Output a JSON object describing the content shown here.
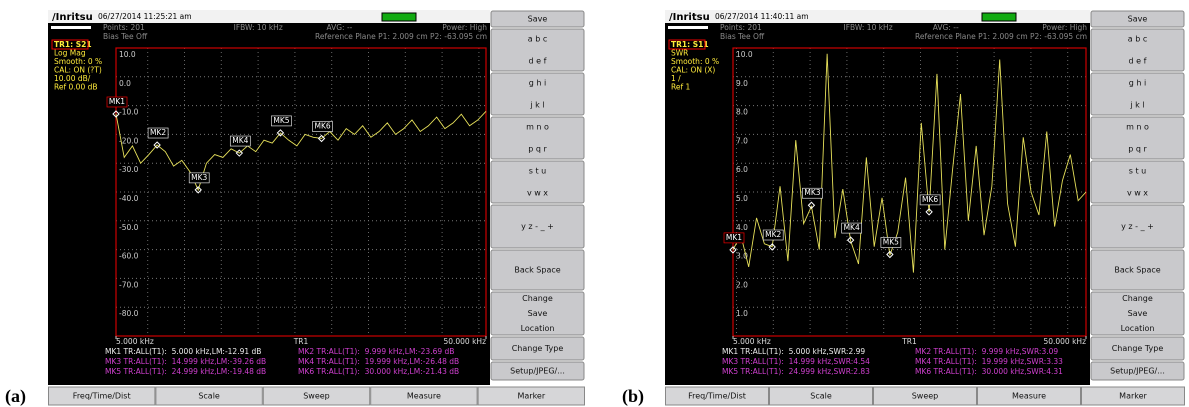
{
  "panels": [
    {
      "caption": "(a)",
      "logo": "/Inritsu",
      "datetime": "06/27/2014 11:25:21 am",
      "points": "Points: 201",
      "bias_tee": "Bias Tee Off",
      "ifbw": "IFBW: 10 kHz",
      "avg": "AVG: --",
      "power": "Power: High",
      "ref_plane": "Reference Plane P1: 2.009 cm P2: -63.095 cm",
      "trace_info": [
        "TR1: S21",
        "Log Mag",
        "Smooth: 0 %",
        "CAL: ON (?T)",
        "10.00 dB/",
        "Ref 0.00 dB"
      ],
      "ylim": [
        -90,
        10
      ],
      "yticks": [
        {
          "value": 10,
          "label": "10.0"
        },
        {
          "value": 0,
          "label": "0.0"
        },
        {
          "value": -10,
          "label": "-10.0"
        },
        {
          "value": -20,
          "label": "-20.0"
        },
        {
          "value": -30,
          "label": "-30.0"
        },
        {
          "value": -40,
          "label": "-40.0"
        },
        {
          "value": -50,
          "label": "-50.0"
        },
        {
          "value": -60,
          "label": "-60.0"
        },
        {
          "value": -70,
          "label": "-70.0"
        },
        {
          "value": -80,
          "label": "-80.0"
        }
      ],
      "xlim": [
        5,
        50
      ],
      "xticks": [
        {
          "value": 5,
          "label": "5.000 kHz"
        },
        {
          "value": 50,
          "label": "50.000 kHz"
        }
      ],
      "trace_name": "TR1",
      "trace": {
        "x": [
          5,
          6,
          7,
          8,
          9,
          10,
          11,
          12,
          13,
          14,
          15,
          16,
          17,
          18,
          19,
          20,
          21,
          22,
          23,
          24,
          25,
          26,
          27,
          28,
          29,
          30,
          31,
          32,
          33,
          34,
          35,
          36,
          37,
          38,
          39,
          40,
          41,
          42,
          43,
          44,
          45,
          46,
          47,
          48,
          49,
          50
        ],
        "values": [
          -12.9,
          -28,
          -24,
          -30,
          -27,
          -23.7,
          -26,
          -31,
          -29,
          -33,
          -39.3,
          -30,
          -27,
          -28,
          -25,
          -26.5,
          -24,
          -26,
          -22,
          -23,
          -19.5,
          -22,
          -24,
          -20,
          -21,
          -21.4,
          -19,
          -22,
          -18,
          -20,
          -17,
          -21,
          -19,
          -16,
          -20,
          -18,
          -15,
          -19,
          -17,
          -14,
          -18,
          -16,
          -13,
          -17,
          -15,
          -12
        ]
      },
      "markers": [
        {
          "label": "MK1",
          "x": 5,
          "value": -12.91
        },
        {
          "label": "MK2",
          "x": 9.999,
          "value": -23.69
        },
        {
          "label": "MK3",
          "x": 14.999,
          "value": -39.26
        },
        {
          "label": "MK4",
          "x": 19.999,
          "value": -26.48
        },
        {
          "label": "MK5",
          "x": 24.999,
          "value": -19.48
        },
        {
          "label": "MK6",
          "x": 30,
          "value": -21.43
        }
      ],
      "readouts": [
        "MK1 TR:ALL(T1):  5.000 kHz,LM:-12.91 dB",
        "MK2 TR:ALL(T1):  9.999 kHz,LM:-23.69 dB",
        "MK3 TR:ALL(T1):  14.999 kHz,LM:-39.26 dB",
        "MK4 TR:ALL(T1):  19.999 kHz,LM:-26.48 dB",
        "MK5 TR:ALL(T1):  24.999 kHz,LM:-19.48 dB",
        "MK6 TR:ALL(T1):  30.000 kHz,LM:-21.43 dB"
      ],
      "softkeys": [
        "Save",
        "a b c",
        "d e f",
        "g h i",
        "j k l",
        "m n o",
        "p q r",
        "s t u",
        "v w x",
        "y z - _ +",
        "Back Space",
        "Change",
        "Save",
        "Location",
        "Change Type",
        "Setup/JPEG/..."
      ],
      "tabs": [
        "Freq/Time/Dist",
        "Scale",
        "Sweep",
        "Measure",
        "Marker"
      ]
    },
    {
      "caption": "(b)",
      "logo": "/Inritsu",
      "datetime": "06/27/2014 11:40:11 am",
      "points": "Points: 201",
      "bias_tee": "Bias Tee Off",
      "ifbw": "IFBW: 10 kHz",
      "avg": "AVG: --",
      "power": "Power: High",
      "ref_plane": "Reference Plane P1: 2.009 cm P2: -63.095 cm",
      "trace_info": [
        "TR1: S11",
        "SWR",
        "Smooth: 0 %",
        "CAL: ON (X)",
        "1 /",
        "Ref 1"
      ],
      "ylim": [
        0,
        10
      ],
      "yticks": [
        {
          "value": 10,
          "label": "10.0"
        },
        {
          "value": 9,
          "label": "9.0"
        },
        {
          "value": 8,
          "label": "8.0"
        },
        {
          "value": 7,
          "label": "7.0"
        },
        {
          "value": 6,
          "label": "6.0"
        },
        {
          "value": 5,
          "label": "5.0"
        },
        {
          "value": 4,
          "label": "4.0"
        },
        {
          "value": 3,
          "label": "3.0"
        },
        {
          "value": 2,
          "label": "2.0"
        },
        {
          "value": 1,
          "label": "1.0"
        }
      ],
      "xlim": [
        5,
        50
      ],
      "xticks": [
        {
          "value": 5,
          "label": "5.000 kHz"
        },
        {
          "value": 50,
          "label": "50.000 kHz"
        }
      ],
      "trace_name": "TR1",
      "trace": {
        "x": [
          5,
          6,
          7,
          8,
          9,
          10,
          11,
          12,
          13,
          14,
          15,
          16,
          17,
          18,
          19,
          20,
          21,
          22,
          23,
          24,
          25,
          26,
          27,
          28,
          29,
          30,
          31,
          32,
          33,
          34,
          35,
          36,
          37,
          38,
          39,
          40,
          41,
          42,
          43,
          44,
          45,
          46,
          47,
          48,
          49,
          50
        ],
        "values": [
          3.0,
          3.5,
          2.4,
          4.1,
          3.2,
          3.1,
          5.2,
          2.6,
          6.8,
          3.9,
          4.5,
          3.0,
          9.8,
          3.4,
          5.1,
          3.3,
          2.5,
          6.2,
          3.1,
          4.8,
          2.8,
          3.6,
          5.5,
          2.2,
          7.4,
          4.3,
          9.1,
          3.0,
          5.8,
          8.4,
          4.0,
          6.6,
          3.5,
          5.2,
          9.6,
          4.6,
          3.1,
          6.9,
          5.0,
          4.2,
          7.1,
          3.8,
          5.4,
          6.3,
          4.7,
          5.0
        ]
      },
      "markers": [
        {
          "label": "MK1",
          "x": 5,
          "value": 2.99
        },
        {
          "label": "MK2",
          "x": 9.999,
          "value": 3.09
        },
        {
          "label": "MK3",
          "x": 14.999,
          "value": 4.54
        },
        {
          "label": "MK4",
          "x": 19.999,
          "value": 3.33
        },
        {
          "label": "MK5",
          "x": 24.999,
          "value": 2.83
        },
        {
          "label": "MK6",
          "x": 30,
          "value": 4.31
        }
      ],
      "readouts": [
        "MK1 TR:ALL(T1):  5.000 kHz,SWR:2.99",
        "MK2 TR:ALL(T1):  9.999 kHz,SWR:3.09",
        "MK3 TR:ALL(T1):  14.999 kHz,SWR:4.54",
        "MK4 TR:ALL(T1):  19.999 kHz,SWR:3.33",
        "MK5 TR:ALL(T1):  24.999 kHz,SWR:2.83",
        "MK6 TR:ALL(T1):  30.000 kHz,SWR:4.31"
      ],
      "softkeys": [
        "Save",
        "a b c",
        "d e f",
        "g h i",
        "j k l",
        "m n o",
        "p q r",
        "s t u",
        "v w x",
        "y z - _ +",
        "Back Space",
        "Change",
        "Save",
        "Location",
        "Change Type",
        "Setup/JPEG/..."
      ],
      "tabs": [
        "Freq/Time/Dist",
        "Scale",
        "Sweep",
        "Measure",
        "Marker"
      ]
    }
  ]
}
